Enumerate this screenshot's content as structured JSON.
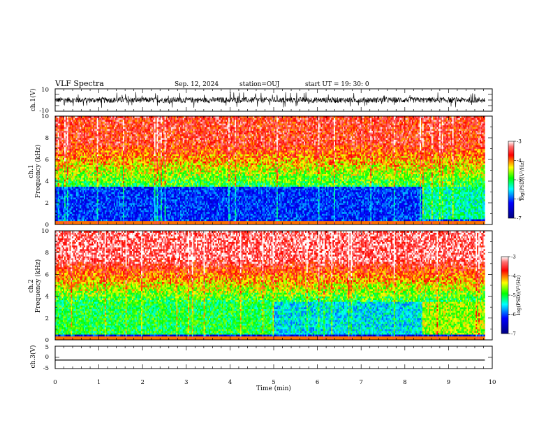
{
  "header": {
    "title": "VLF Spectra",
    "date": "Sep. 12, 2024",
    "station": "station=OUJ",
    "start": "start  UT =   19: 30: 0"
  },
  "chart_data": [
    {
      "type": "line",
      "panel": "ch1-waveform",
      "ylabel": "ch.1(V)",
      "ylim": [
        -10,
        10
      ],
      "yticks": [
        "10",
        "-10"
      ],
      "xlim": [
        0,
        10
      ],
      "description_values": {
        "baseline": 0,
        "typical_amplitude": 2.5,
        "spike_amplitude": 7
      },
      "series": [
        {
          "color": "#000000"
        }
      ]
    },
    {
      "type": "heatmap",
      "panel": "ch1-spectrogram",
      "ylabel_line1": "ch.1",
      "ylabel_line2": "Frequency (kHz)",
      "ylim": [
        0,
        10
      ],
      "yticks": [
        "0",
        "2",
        "4",
        "6",
        "8",
        "10"
      ],
      "xlim": [
        0,
        9.83
      ],
      "colorbar": {
        "label": "log(PSD)(V²/Hz)",
        "range": [
          -7,
          -3
        ],
        "ticks": [
          "-3",
          "-4",
          "-5",
          "-6",
          "-7"
        ]
      },
      "profile": {
        "low_band_kHz": [
          0.5,
          3.5
        ],
        "low_band_level": -6.1,
        "quiet_after_min": 8.4,
        "high_freq_level": -3.6
      }
    },
    {
      "type": "heatmap",
      "panel": "ch2-spectrogram",
      "ylabel_line1": "ch.2",
      "ylabel_line2": "Frequency (kHz)",
      "ylim": [
        0,
        10
      ],
      "yticks": [
        "0",
        "2",
        "4",
        "6",
        "8",
        "10"
      ],
      "xlim": [
        0,
        9.83
      ],
      "colorbar": {
        "label": "log(PSD)(V²/Hz)",
        "range": [
          -7,
          -3
        ],
        "ticks": [
          "-3",
          "-4",
          "-5",
          "-6",
          "-7"
        ]
      },
      "profile": {
        "low_band_kHz": [
          0.5,
          3.5
        ],
        "low_band_level": -5.0,
        "quiet_between_min": [
          5.0,
          8.4
        ],
        "high_freq_level": -3.3
      }
    },
    {
      "type": "line",
      "panel": "ch3-waveform",
      "ylabel": "ch.3(V)",
      "ylim": [
        -5,
        5
      ],
      "yticks": [
        "5",
        "0",
        "-5"
      ],
      "xlim": [
        0,
        10
      ],
      "series": [
        {
          "constant": -1.2,
          "x_end": 9.83,
          "color": "#000000"
        }
      ]
    }
  ],
  "xaxis": {
    "label": "Time (min)",
    "ticks": [
      "0",
      "1",
      "2",
      "3",
      "4",
      "5",
      "6",
      "7",
      "8",
      "9",
      "10"
    ]
  }
}
